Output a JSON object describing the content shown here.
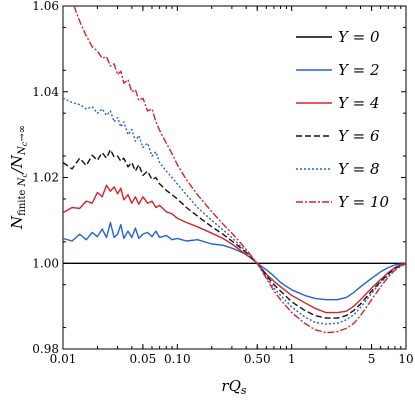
{
  "chart_data": {
    "type": "line",
    "title": "",
    "xlabel": "rQ_s",
    "ylabel": "N_finite Nc / N_Nc→∞",
    "xscale": "log",
    "xlim": [
      0.01,
      10
    ],
    "ylim": [
      0.98,
      1.06
    ],
    "grid": false,
    "legend_position": "top-right",
    "x_ticks": [
      {
        "value": 0.01,
        "label": "0.01"
      },
      {
        "value": 0.05,
        "label": "0.05"
      },
      {
        "value": 0.1,
        "label": "0.10"
      },
      {
        "value": 0.5,
        "label": "0.50"
      },
      {
        "value": 1,
        "label": "1"
      },
      {
        "value": 5,
        "label": "5"
      },
      {
        "value": 10,
        "label": "10"
      }
    ],
    "y_ticks": [
      {
        "value": 0.98,
        "label": "0.98"
      },
      {
        "value": 1.0,
        "label": "1.00"
      },
      {
        "value": 1.02,
        "label": "1.02"
      },
      {
        "value": 1.04,
        "label": "1.04"
      },
      {
        "value": 1.06,
        "label": "1.06"
      }
    ],
    "series": [
      {
        "name": "Y = 0",
        "color": "#000000",
        "dash": "solid",
        "x": [
          0.01,
          10
        ],
        "y": [
          1.0,
          1.0
        ]
      },
      {
        "name": "Y = 2",
        "color": "#2262d6",
        "dash": "solid",
        "x": [
          0.01,
          0.012,
          0.014,
          0.016,
          0.018,
          0.02,
          0.022,
          0.024,
          0.026,
          0.028,
          0.03,
          0.032,
          0.034,
          0.037,
          0.04,
          0.043,
          0.046,
          0.05,
          0.055,
          0.06,
          0.065,
          0.07,
          0.08,
          0.09,
          0.1,
          0.12,
          0.15,
          0.2,
          0.25,
          0.3,
          0.35,
          0.4,
          0.45,
          0.5,
          0.6,
          0.7,
          0.8,
          1.0,
          1.3,
          1.6,
          2.0,
          2.5,
          3.0,
          3.5,
          4.0,
          5.0,
          6.0,
          7.0,
          8.0,
          10.0
        ],
        "y": [
          1.0058,
          1.0052,
          1.0068,
          1.0055,
          1.0072,
          1.0062,
          1.008,
          1.006,
          1.0095,
          1.006,
          1.0068,
          1.009,
          1.0058,
          1.0075,
          1.006,
          1.0082,
          1.0058,
          1.0068,
          1.0072,
          1.0062,
          1.0075,
          1.006,
          1.0065,
          1.0055,
          1.0058,
          1.0052,
          1.0055,
          1.0045,
          1.0042,
          1.0035,
          1.0028,
          1.002,
          1.0012,
          1.0,
          0.9985,
          0.997,
          0.9955,
          0.9938,
          0.9925,
          0.9918,
          0.9915,
          0.9915,
          0.992,
          0.9932,
          0.9945,
          0.9965,
          0.998,
          0.999,
          0.9996,
          1.0
        ]
      },
      {
        "name": "Y = 4",
        "color": "#d6232a",
        "dash": "solid",
        "x": [
          0.01,
          0.012,
          0.014,
          0.016,
          0.018,
          0.02,
          0.022,
          0.024,
          0.026,
          0.028,
          0.03,
          0.032,
          0.034,
          0.037,
          0.04,
          0.043,
          0.046,
          0.05,
          0.055,
          0.06,
          0.065,
          0.07,
          0.08,
          0.09,
          0.1,
          0.12,
          0.15,
          0.2,
          0.25,
          0.3,
          0.35,
          0.4,
          0.45,
          0.5,
          0.6,
          0.7,
          0.8,
          1.0,
          1.3,
          1.6,
          2.0,
          2.5,
          3.0,
          3.5,
          4.0,
          5.0,
          6.0,
          7.0,
          8.0,
          10.0
        ],
        "y": [
          1.0118,
          1.013,
          1.0128,
          1.0145,
          1.014,
          1.0165,
          1.0155,
          1.0182,
          1.0168,
          1.0178,
          1.0162,
          1.0175,
          1.0148,
          1.016,
          1.014,
          1.0155,
          1.0138,
          1.0155,
          1.014,
          1.0145,
          1.013,
          1.0135,
          1.012,
          1.0115,
          1.0105,
          1.0095,
          1.0085,
          1.007,
          1.0058,
          1.0045,
          1.0032,
          1.002,
          1.001,
          1.0,
          0.9975,
          0.9958,
          0.9945,
          0.9925,
          0.9908,
          0.9895,
          0.9885,
          0.9885,
          0.9888,
          0.99,
          0.9915,
          0.9942,
          0.9962,
          0.9978,
          0.999,
          1.0
        ]
      },
      {
        "name": "Y = 6",
        "color": "#111111",
        "dash": "6,3",
        "x": [
          0.01,
          0.012,
          0.014,
          0.016,
          0.018,
          0.02,
          0.022,
          0.024,
          0.026,
          0.028,
          0.03,
          0.032,
          0.034,
          0.037,
          0.04,
          0.043,
          0.046,
          0.05,
          0.055,
          0.06,
          0.065,
          0.07,
          0.08,
          0.09,
          0.1,
          0.12,
          0.15,
          0.2,
          0.25,
          0.3,
          0.35,
          0.4,
          0.45,
          0.5,
          0.6,
          0.7,
          0.8,
          1.0,
          1.3,
          1.6,
          2.0,
          2.5,
          3.0,
          3.5,
          4.0,
          5.0,
          6.0,
          7.0,
          8.0,
          10.0
        ],
        "y": [
          1.0235,
          1.022,
          1.0245,
          1.0228,
          1.0252,
          1.024,
          1.0258,
          1.0245,
          1.0265,
          1.0248,
          1.025,
          1.0238,
          1.0245,
          1.0225,
          1.0235,
          1.0215,
          1.023,
          1.0205,
          1.0215,
          1.0195,
          1.02,
          1.0185,
          1.017,
          1.016,
          1.015,
          1.013,
          1.011,
          1.0085,
          1.0068,
          1.0052,
          1.0038,
          1.0025,
          1.0012,
          1.0,
          0.9972,
          0.995,
          0.9935,
          0.991,
          0.989,
          0.9878,
          0.9872,
          0.9872,
          0.9878,
          0.989,
          0.9905,
          0.9935,
          0.9958,
          0.9975,
          0.9988,
          1.0
        ]
      },
      {
        "name": "Y = 8",
        "color": "#2262d6",
        "dash": "2,2",
        "x": [
          0.01,
          0.012,
          0.014,
          0.016,
          0.018,
          0.02,
          0.022,
          0.024,
          0.026,
          0.028,
          0.03,
          0.032,
          0.034,
          0.037,
          0.04,
          0.043,
          0.046,
          0.05,
          0.055,
          0.06,
          0.065,
          0.07,
          0.08,
          0.09,
          0.1,
          0.12,
          0.15,
          0.2,
          0.25,
          0.3,
          0.35,
          0.4,
          0.45,
          0.5,
          0.6,
          0.7,
          0.8,
          1.0,
          1.3,
          1.6,
          2.0,
          2.5,
          3.0,
          3.5,
          4.0,
          5.0,
          6.0,
          7.0,
          8.0,
          10.0
        ],
        "y": [
          1.0385,
          1.0375,
          1.037,
          1.036,
          1.0365,
          1.035,
          1.036,
          1.0345,
          1.0355,
          1.033,
          1.034,
          1.0318,
          1.033,
          1.03,
          1.0312,
          1.0285,
          1.0298,
          1.027,
          1.028,
          1.025,
          1.026,
          1.0235,
          1.0215,
          1.02,
          1.0185,
          1.016,
          1.013,
          1.01,
          1.0078,
          1.006,
          1.0042,
          1.0028,
          1.0013,
          1.0,
          0.9968,
          0.9942,
          0.9925,
          0.9898,
          0.9875,
          0.9862,
          0.9858,
          0.986,
          0.9868,
          0.988,
          0.9897,
          0.993,
          0.9955,
          0.9972,
          0.9986,
          1.0
        ]
      },
      {
        "name": "Y = 10",
        "color": "#d6232a",
        "dash": "7,2,2,2",
        "x": [
          0.0125,
          0.0135,
          0.0145,
          0.016,
          0.018,
          0.02,
          0.022,
          0.024,
          0.026,
          0.028,
          0.03,
          0.032,
          0.034,
          0.037,
          0.04,
          0.043,
          0.046,
          0.05,
          0.055,
          0.06,
          0.065,
          0.07,
          0.08,
          0.09,
          0.1,
          0.12,
          0.15,
          0.2,
          0.25,
          0.3,
          0.35,
          0.4,
          0.45,
          0.5,
          0.6,
          0.7,
          0.8,
          1.0,
          1.3,
          1.6,
          2.0,
          2.5,
          3.0,
          3.5,
          4.0,
          5.0,
          6.0,
          7.0,
          8.0,
          10.0
        ],
        "y": [
          1.06,
          1.0575,
          1.0555,
          1.053,
          1.0505,
          1.0495,
          1.0478,
          1.0482,
          1.046,
          1.0465,
          1.044,
          1.0448,
          1.042,
          1.0428,
          1.04,
          1.0405,
          1.038,
          1.0385,
          1.0355,
          1.036,
          1.033,
          1.031,
          1.028,
          1.0255,
          1.023,
          1.0195,
          1.016,
          1.012,
          1.0092,
          1.007,
          1.005,
          1.0032,
          1.0015,
          1.0,
          0.9965,
          0.9935,
          0.9915,
          0.9885,
          0.986,
          0.9845,
          0.9838,
          0.984,
          0.9848,
          0.986,
          0.9878,
          0.9915,
          0.9945,
          0.9968,
          0.9984,
          1.0
        ]
      }
    ]
  }
}
